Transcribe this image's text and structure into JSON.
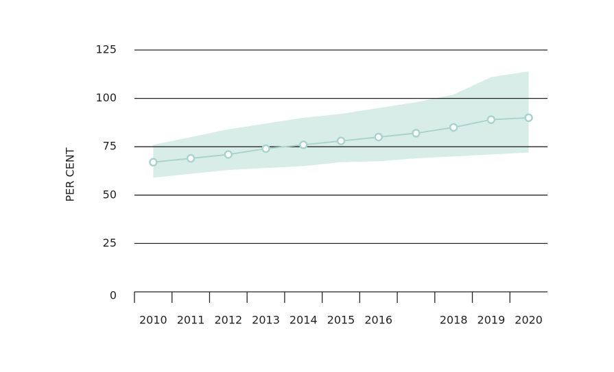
{
  "chart_data": {
    "type": "line",
    "y_label": "PER CENT",
    "categories": [
      "2010",
      "2011",
      "2012",
      "2013",
      "2014",
      "2015",
      "2016",
      null,
      "2018",
      "2019",
      "2020"
    ],
    "series": [
      {
        "color": "#a9d4ce",
        "values": [
          67,
          69,
          71,
          74,
          76,
          78,
          80,
          82,
          85,
          89,
          90
        ]
      }
    ],
    "band": {
      "color": "#d9ede8",
      "upper": [
        76,
        80,
        84,
        87,
        90,
        92,
        95,
        98,
        102,
        111,
        114
      ],
      "lower": [
        59,
        61,
        63,
        64,
        65,
        67,
        67.5,
        69,
        70,
        71,
        72
      ]
    },
    "ylim": [
      0,
      125
    ],
    "yticks": [
      0,
      25,
      50,
      75,
      100,
      125
    ],
    "grid": true
  }
}
